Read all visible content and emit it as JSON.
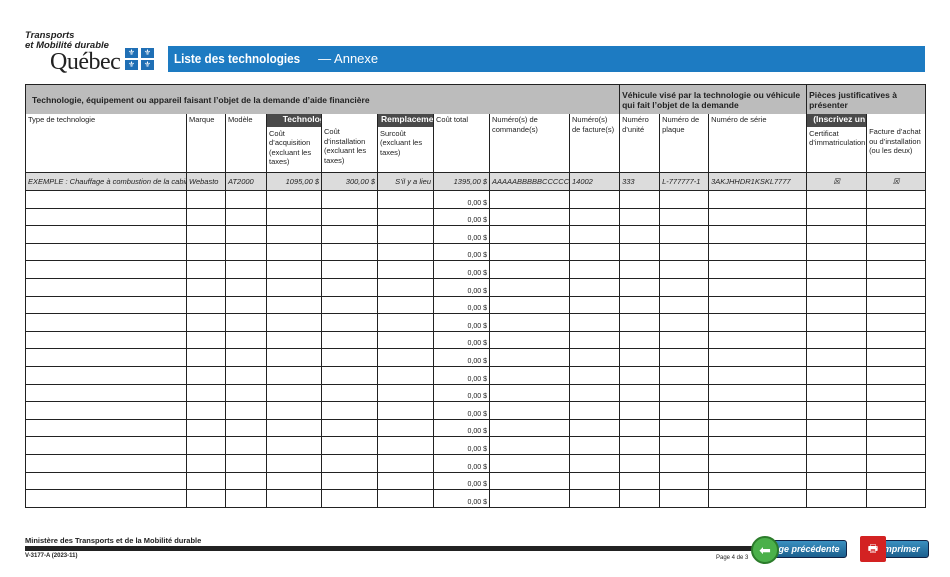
{
  "brand": {
    "line1": "Transports",
    "line2": "et Mobilité durable",
    "quebec": "Québec",
    "flag_glyph": "⚜"
  },
  "title": {
    "main": "Liste des technologies",
    "sub": "— Annexe"
  },
  "table": {
    "band": {
      "tech": "Technologie, équipement ou appareil faisant l’objet de la demande d’aide financière",
      "vehicle": "Véhicule visé par la technologie ou véhicule qui fait l’objet de la demande",
      "pieces": "Pièces justificatives à présenter"
    },
    "tags": {
      "ajoutee": "Technologie ajoutée",
      "remplacement": "Remplacement",
      "inscrivez": "(Inscrivez un X ou cochez)"
    },
    "columns": [
      "Type de technologie",
      "Marque",
      "Modèle",
      "Coût d’acquisition (excluant les taxes)",
      "Coût d’installation (excluant les taxes)",
      "Surcoût (excluant les taxes)",
      "Coût total",
      "Numéro(s) de commande(s)",
      "Numéro(s) de facture(s)",
      "Numéro d’unité",
      "Numéro de plaque",
      "Numéro de série",
      "Certificat d’immatriculation",
      "Facture d’achat ou d’installation (ou les deux)"
    ],
    "example": [
      "EXEMPLE : Chauffage à combustion de la cabine",
      "Webasto",
      "AT2000",
      "1095,00 $",
      "300,00 $",
      "S’il y a lieu",
      "1395,00 $",
      "AAAAABBBBBCCCCC",
      "14002",
      "333",
      "L-777777-1",
      "3AKJHHDR1KSKL7777",
      "☒",
      "☒"
    ],
    "row_total": "0,00 $",
    "row_count": 18
  },
  "footer": {
    "ministry": "Ministère des Transports et de la Mobilité durable",
    "code": "V-3177-A (2023-11)",
    "page": "Page 4 de 3",
    "prev": "Page précédente",
    "print": "Imprimer"
  }
}
